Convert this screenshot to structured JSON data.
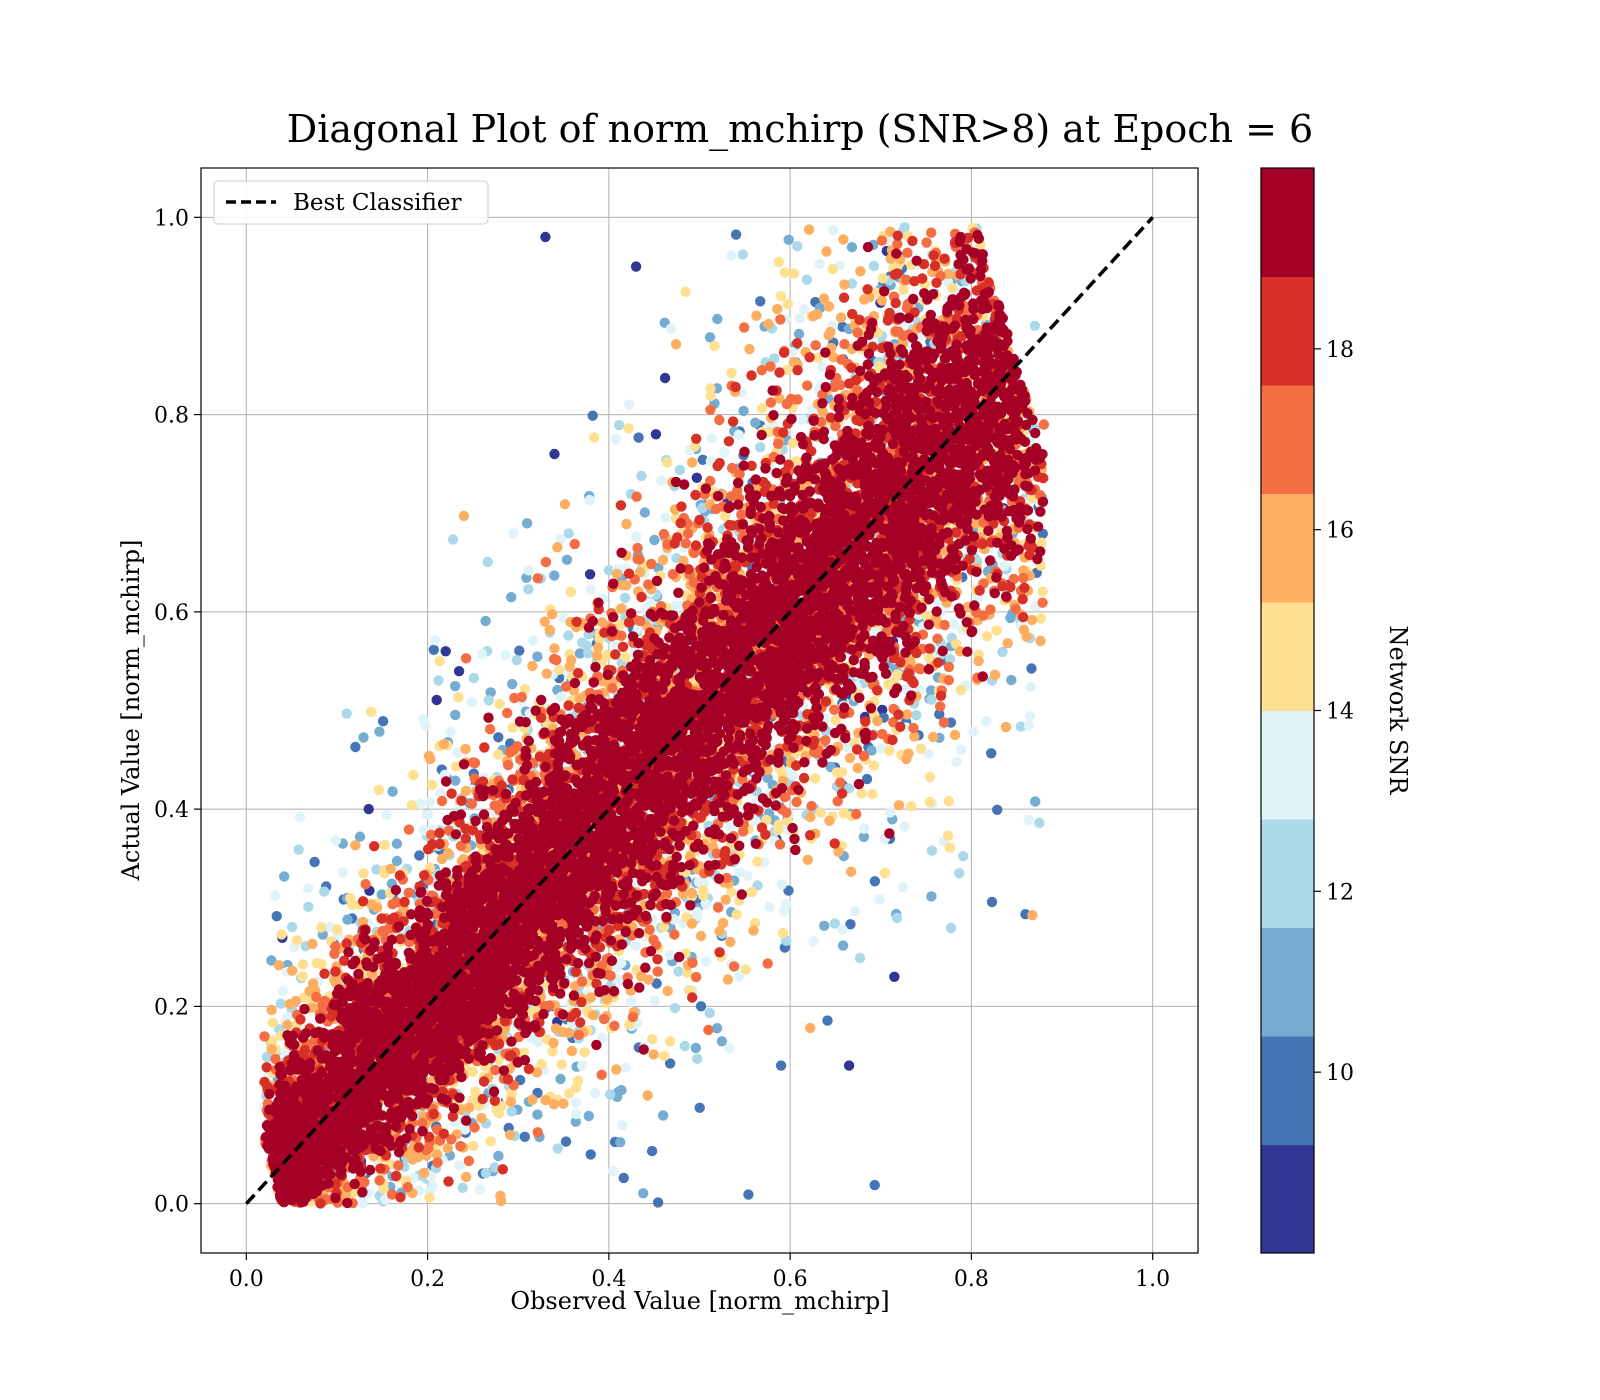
{
  "chart_data": {
    "type": "scatter",
    "title": "Diagonal Plot of norm_mchirp (SNR>8) at Epoch = 6",
    "xlabel": "Observed Value [norm_mchirp]",
    "ylabel": "Actual Value [norm_mchirp]",
    "xlim": [
      -0.05,
      1.05
    ],
    "ylim": [
      -0.05,
      1.05
    ],
    "xticks": [
      "0.0",
      "0.2",
      "0.4",
      "0.6",
      "0.8",
      "1.0"
    ],
    "yticks": [
      "0.0",
      "0.2",
      "0.4",
      "0.6",
      "0.8",
      "1.0"
    ],
    "grid": true,
    "legend": {
      "position": "top-left",
      "entries": [
        "Best Classifier"
      ]
    },
    "reference_line": {
      "name": "Best Classifier",
      "x": [
        0.0,
        1.0
      ],
      "y": [
        0.0,
        1.0
      ],
      "style": "dashed",
      "color": "#000000"
    },
    "colorbar": {
      "label": "Network SNR",
      "range": [
        8,
        20
      ],
      "ticks": [
        "10",
        "12",
        "14",
        "16",
        "18"
      ],
      "bins": 10,
      "colors": [
        "#313695",
        "#4575b4",
        "#74add1",
        "#abd9e9",
        "#e0f3f8",
        "#fee090",
        "#fdae61",
        "#f46d43",
        "#d73027",
        "#a50026"
      ]
    },
    "points_summary": {
      "description_of_distribution": "dense band along diagonal y=x; high-SNR points near the line, low-SNR points at the band edges",
      "x_range": [
        0.03,
        0.88
      ],
      "y_range": [
        0.0,
        0.99
      ]
    },
    "sample_points": [
      {
        "x": 0.33,
        "y": 0.98,
        "snr": 8.5
      },
      {
        "x": 0.135,
        "y": 0.4,
        "snr": 8.5
      },
      {
        "x": 0.665,
        "y": 0.14,
        "snr": 8.5
      },
      {
        "x": 0.715,
        "y": 0.23,
        "snr": 8.5
      },
      {
        "x": 0.22,
        "y": 0.56,
        "snr": 8.5
      },
      {
        "x": 0.34,
        "y": 0.76,
        "snr": 8.5
      },
      {
        "x": 0.43,
        "y": 0.95,
        "snr": 8.5
      },
      {
        "x": 0.38,
        "y": 0.05,
        "snr": 9.5
      },
      {
        "x": 0.59,
        "y": 0.14,
        "snr": 9.5
      },
      {
        "x": 0.87,
        "y": 0.89,
        "snr": 12.5
      },
      {
        "x": 0.88,
        "y": 0.79,
        "snr": 17.5
      }
    ]
  }
}
